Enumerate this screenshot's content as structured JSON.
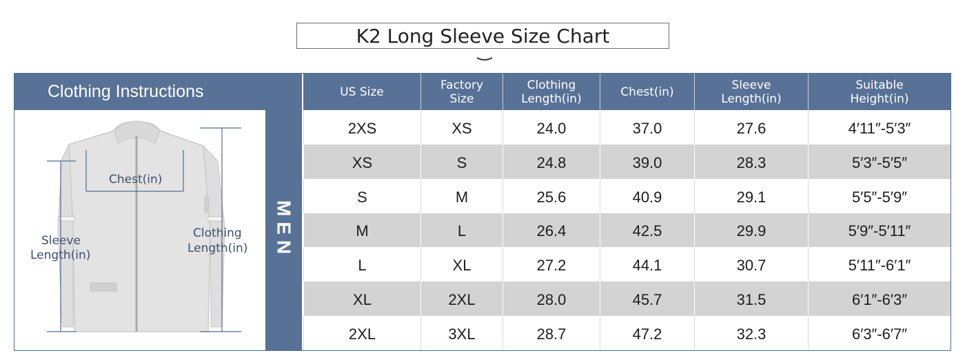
{
  "title": "K2 Long Sleeve Size Chart",
  "instructions_header": "Clothing Instructions",
  "category_label": "MEN",
  "diagram_labels": {
    "chest": "Chest(in)",
    "sleeve_line1": "Sleeve",
    "sleeve_line2": "Length(in)",
    "clothing_line1": "Clothing",
    "clothing_line2": "Length(in)"
  },
  "columns": [
    [
      "US Size"
    ],
    [
      "Factory",
      "Size"
    ],
    [
      "Clothing",
      "Length(in)"
    ],
    [
      "Chest(in)"
    ],
    [
      "Sleeve",
      "Length(in)"
    ],
    [
      "Suitable",
      "Height(in)"
    ]
  ],
  "rows": [
    [
      "2XS",
      "XS",
      "24.0",
      "37.0",
      "27.6",
      "4′11″-5′3″"
    ],
    [
      "XS",
      "S",
      "24.8",
      "39.0",
      "28.3",
      "5′3″-5′5″"
    ],
    [
      "S",
      "M",
      "25.6",
      "40.9",
      "29.1",
      "5′5″-5′9″"
    ],
    [
      "M",
      "L",
      "26.4",
      "42.5",
      "29.9",
      "5′9″-5′11″"
    ],
    [
      "L",
      "XL",
      "27.2",
      "44.1",
      "30.7",
      "5′11″-6′1″"
    ],
    [
      "XL",
      "2XL",
      "28.0",
      "45.7",
      "31.5",
      "6′1″-6′3″"
    ],
    [
      "2XL",
      "3XL",
      "28.7",
      "47.2",
      "32.3",
      "6′3″-6′7″"
    ]
  ],
  "colors": {
    "header_blue": "#587196",
    "stripe_gray": "#d3d3d3"
  },
  "icons": [
    "chevron-down-icon",
    "hoodie-illustration"
  ]
}
